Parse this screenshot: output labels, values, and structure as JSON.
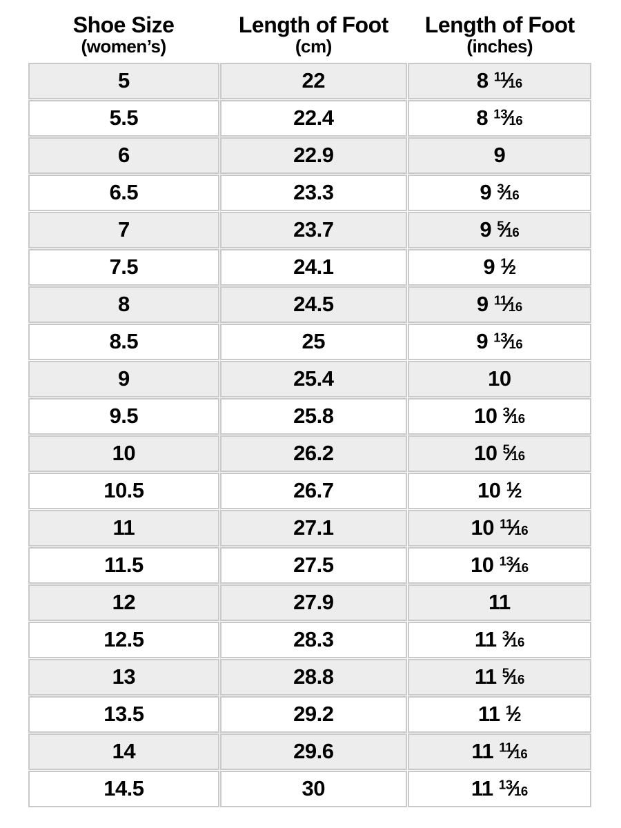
{
  "colors": {
    "background": "#ffffff",
    "row_alt": "#ededed",
    "row_white": "#ffffff",
    "cell_border": "#c9c9c9",
    "text": "#000000"
  },
  "headers": [
    {
      "title": "Shoe Size",
      "subtitle": "(women’s)"
    },
    {
      "title": "Length of Foot",
      "subtitle": "(cm)"
    },
    {
      "title": "Length of Foot",
      "subtitle": "(inches)"
    }
  ],
  "chart_data": {
    "type": "table",
    "columns": [
      "Shoe Size (women’s)",
      "Length of Foot (cm)",
      "Length of Foot (inches)"
    ],
    "rows": [
      {
        "size": "5",
        "cm": "22",
        "in_whole": "8",
        "in_num": "11",
        "in_den": "16"
      },
      {
        "size": "5.5",
        "cm": "22.4",
        "in_whole": "8",
        "in_num": "13",
        "in_den": "16"
      },
      {
        "size": "6",
        "cm": "22.9",
        "in_whole": "9",
        "in_num": "",
        "in_den": ""
      },
      {
        "size": "6.5",
        "cm": "23.3",
        "in_whole": "9",
        "in_num": "3",
        "in_den": "16"
      },
      {
        "size": "7",
        "cm": "23.7",
        "in_whole": "9",
        "in_num": "5",
        "in_den": "16"
      },
      {
        "size": "7.5",
        "cm": "24.1",
        "in_whole": "9",
        "in_num": "1",
        "in_den": "2"
      },
      {
        "size": "8",
        "cm": "24.5",
        "in_whole": "9",
        "in_num": "11",
        "in_den": "16"
      },
      {
        "size": "8.5",
        "cm": "25",
        "in_whole": "9",
        "in_num": "13",
        "in_den": "16"
      },
      {
        "size": "9",
        "cm": "25.4",
        "in_whole": "10",
        "in_num": "",
        "in_den": ""
      },
      {
        "size": "9.5",
        "cm": "25.8",
        "in_whole": "10",
        "in_num": "3",
        "in_den": "16"
      },
      {
        "size": "10",
        "cm": "26.2",
        "in_whole": "10",
        "in_num": "5",
        "in_den": "16"
      },
      {
        "size": "10.5",
        "cm": "26.7",
        "in_whole": "10",
        "in_num": "1",
        "in_den": "2"
      },
      {
        "size": "11",
        "cm": "27.1",
        "in_whole": "10",
        "in_num": "11",
        "in_den": "16"
      },
      {
        "size": "11.5",
        "cm": "27.5",
        "in_whole": "10",
        "in_num": "13",
        "in_den": "16"
      },
      {
        "size": "12",
        "cm": "27.9",
        "in_whole": "11",
        "in_num": "",
        "in_den": ""
      },
      {
        "size": "12.5",
        "cm": "28.3",
        "in_whole": "11",
        "in_num": "3",
        "in_den": "16"
      },
      {
        "size": "13",
        "cm": "28.8",
        "in_whole": "11",
        "in_num": "5",
        "in_den": "16"
      },
      {
        "size": "13.5",
        "cm": "29.2",
        "in_whole": "11",
        "in_num": "1",
        "in_den": "2"
      },
      {
        "size": "14",
        "cm": "29.6",
        "in_whole": "11",
        "in_num": "11",
        "in_den": "16"
      },
      {
        "size": "14.5",
        "cm": "30",
        "in_whole": "11",
        "in_num": "13",
        "in_den": "16"
      }
    ]
  }
}
